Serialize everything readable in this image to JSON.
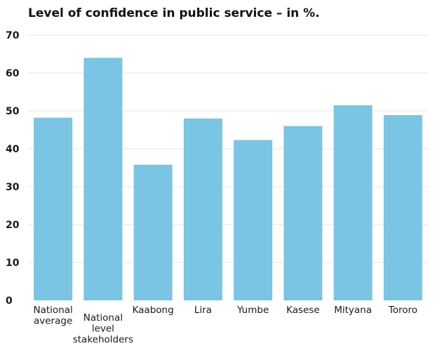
{
  "chart_data": {
    "type": "bar",
    "title": "Level of confidence in public service – in %.",
    "xlabel": "",
    "ylabel": "",
    "ylim": [
      0,
      70
    ],
    "yticks": [
      0,
      10,
      20,
      30,
      40,
      50,
      60,
      70
    ],
    "grid": true,
    "legend": "none",
    "categories": [
      [
        "National",
        "average"
      ],
      [
        "National",
        "level",
        "stakeholders"
      ],
      [
        "Kaabong"
      ],
      [
        "Lira"
      ],
      [
        "Yumbe"
      ],
      [
        "Kasese"
      ],
      [
        "Mityana"
      ],
      [
        "Tororo"
      ]
    ],
    "values": [
      48.2,
      64,
      35.8,
      48,
      42.3,
      46,
      51.5,
      48.9
    ],
    "bar_color": "#7ac5e3",
    "grid_color": "#e6e6e6"
  }
}
